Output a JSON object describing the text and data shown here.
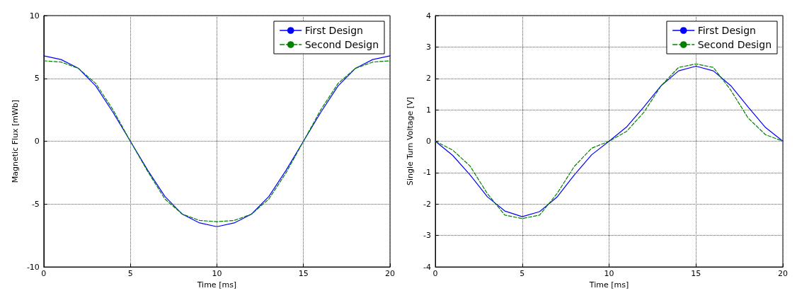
{
  "chart_data": [
    {
      "type": "line",
      "xlabel": "Time [ms]",
      "ylabel": "Magnetic Flux [mWb]",
      "x": [
        0,
        1,
        2,
        3,
        4,
        5,
        6,
        7,
        8,
        9,
        10,
        11,
        12,
        13,
        14,
        15,
        16,
        17,
        18,
        19,
        20
      ],
      "xlim": [
        0,
        20
      ],
      "xticks": [
        0,
        5,
        10,
        15,
        20
      ],
      "ylim": [
        -10,
        10
      ],
      "yticks": [
        -10,
        -5,
        0,
        5,
        10
      ],
      "grid": true,
      "legend": "top right",
      "marker": "none",
      "series": [
        {
          "name": "First Design",
          "color": "#0000ff",
          "line_style": "solid",
          "values": [
            6.8,
            6.5,
            5.8,
            4.4,
            2.3,
            0,
            -2.3,
            -4.4,
            -5.8,
            -6.5,
            -6.8,
            -6.5,
            -5.8,
            -4.4,
            -2.3,
            0,
            2.3,
            4.4,
            5.8,
            6.5,
            6.8
          ]
        },
        {
          "name": "Second Design",
          "color": "#008000",
          "line_style": "dashed",
          "values": [
            6.4,
            6.3,
            5.8,
            4.6,
            2.5,
            0,
            -2.4,
            -4.6,
            -5.8,
            -6.3,
            -6.4,
            -6.3,
            -5.8,
            -4.6,
            -2.5,
            0,
            2.5,
            4.6,
            5.8,
            6.3,
            6.4
          ]
        }
      ]
    },
    {
      "type": "line",
      "xlabel": "Time [ms]",
      "ylabel": "Single Turn Voltage [V]",
      "x": [
        0,
        1,
        2,
        3,
        4,
        5,
        6,
        7,
        8,
        9,
        10,
        11,
        12,
        13,
        14,
        15,
        16,
        17,
        18,
        19,
        20
      ],
      "xlim": [
        0,
        20
      ],
      "xticks": [
        0,
        5,
        10,
        15,
        20
      ],
      "ylim": [
        -4,
        4
      ],
      "yticks": [
        -4,
        -3,
        -2,
        -1,
        0,
        1,
        2,
        3,
        4
      ],
      "grid": true,
      "legend": "top right",
      "marker": "none",
      "series": [
        {
          "name": "First Design",
          "color": "#0000ff",
          "line_style": "solid",
          "values": [
            0,
            -0.45,
            -1.07,
            -1.77,
            -2.22,
            -2.4,
            -2.24,
            -1.78,
            -1.07,
            -0.43,
            0,
            0.45,
            1.09,
            1.77,
            2.24,
            2.39,
            2.24,
            1.77,
            1.09,
            0.44,
            0
          ]
        },
        {
          "name": "Second Design",
          "color": "#008000",
          "line_style": "dashed",
          "values": [
            0,
            -0.28,
            -0.79,
            -1.67,
            -2.35,
            -2.46,
            -2.35,
            -1.67,
            -0.8,
            -0.22,
            0,
            0.31,
            0.92,
            1.77,
            2.35,
            2.46,
            2.35,
            1.63,
            0.74,
            0.21,
            0
          ]
        }
      ]
    }
  ]
}
